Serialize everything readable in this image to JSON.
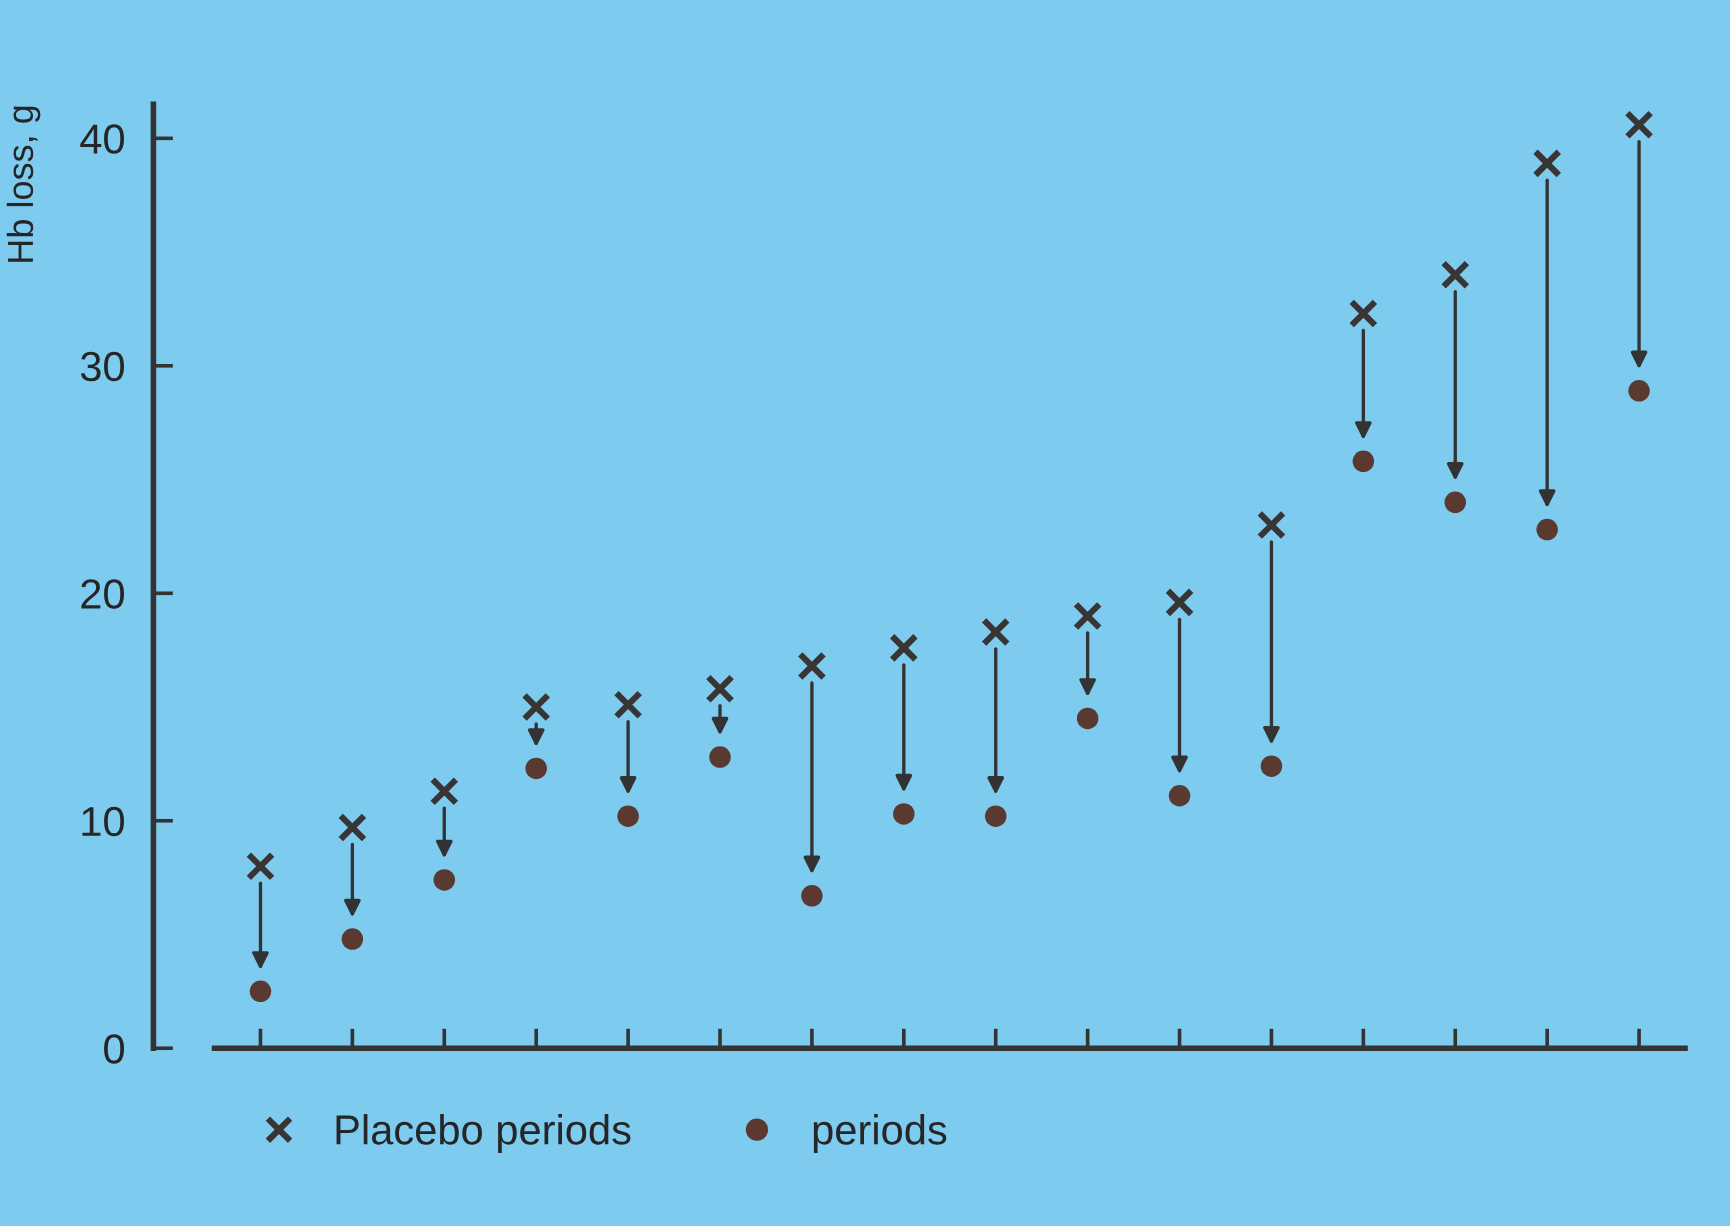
{
  "chart_data": {
    "type": "scatter",
    "ylabel": "Hb loss, g",
    "categories": [
      null,
      null,
      null,
      null,
      null,
      null,
      null,
      null,
      null,
      null,
      null,
      null,
      null,
      null,
      null,
      null
    ],
    "series": [
      {
        "name": "Placebo periods",
        "color": "#3a3535",
        "marker": "cross",
        "values": [
          8.0,
          9.7,
          11.3,
          15.0,
          15.1,
          15.8,
          16.8,
          17.6,
          18.3,
          19.0,
          19.6,
          23.0,
          32.3,
          34.0,
          38.9,
          40.6
        ]
      },
      {
        "name": "periods",
        "color": "#5a3a30",
        "marker": "circle",
        "values": [
          2.5,
          4.8,
          7.4,
          12.3,
          10.2,
          12.8,
          6.7,
          10.3,
          10.2,
          14.5,
          11.1,
          12.4,
          25.8,
          24.0,
          22.8,
          28.9
        ]
      }
    ],
    "ylim": [
      0,
      41.5
    ],
    "yticks": [
      0,
      10,
      20,
      30,
      40
    ],
    "grid": false,
    "legend": "bottom"
  }
}
